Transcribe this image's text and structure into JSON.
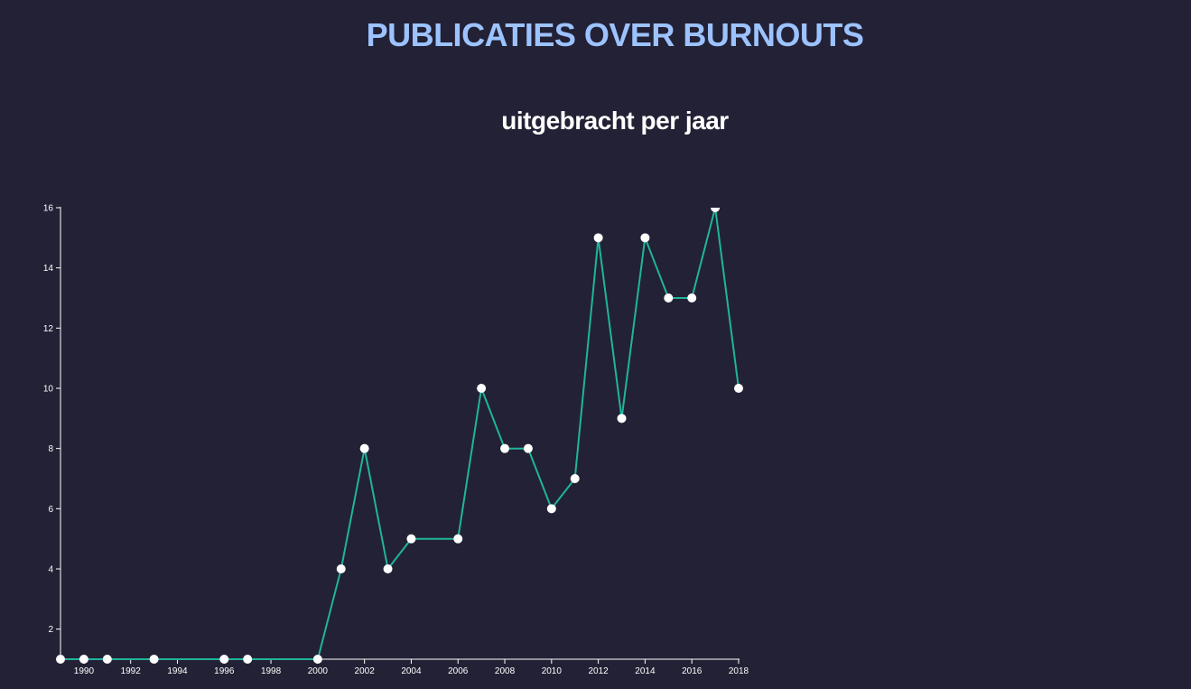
{
  "header": {
    "title": "PUBLICATIES OVER BURNOUTS",
    "subtitle": "uitgebracht per jaar"
  },
  "colors": {
    "background": "#232135",
    "title": "#9cc3ff",
    "line": "#1fb59a",
    "point": "#ffffff",
    "axis": "#ffffff"
  },
  "chart_data": {
    "type": "line",
    "title": "",
    "xlabel": "",
    "ylabel": "",
    "grid": false,
    "legend": "none",
    "x": [
      1989,
      1990,
      1991,
      1993,
      1996,
      1997,
      2000,
      2001,
      2002,
      2003,
      2004,
      2006,
      2007,
      2008,
      2009,
      2010,
      2011,
      2012,
      2013,
      2014,
      2015,
      2016,
      2017,
      2018
    ],
    "series": [
      {
        "values": [
          1,
          1,
          1,
          1,
          1,
          1,
          1,
          4,
          8,
          4,
          5,
          5,
          10,
          8,
          8,
          6,
          7,
          15,
          9,
          15,
          13,
          13,
          16,
          10
        ]
      }
    ],
    "xlim": [
      1989,
      2018
    ],
    "ylim": [
      1,
      16
    ],
    "x_ticks": [
      "1990",
      "1992",
      "1994",
      "1996",
      "1998",
      "2000",
      "2002",
      "2004",
      "2006",
      "2008",
      "2010",
      "2012",
      "2014",
      "2016",
      "2018"
    ],
    "y_ticks": [
      "2",
      "4",
      "6",
      "8",
      "10",
      "12",
      "14",
      "16"
    ]
  }
}
